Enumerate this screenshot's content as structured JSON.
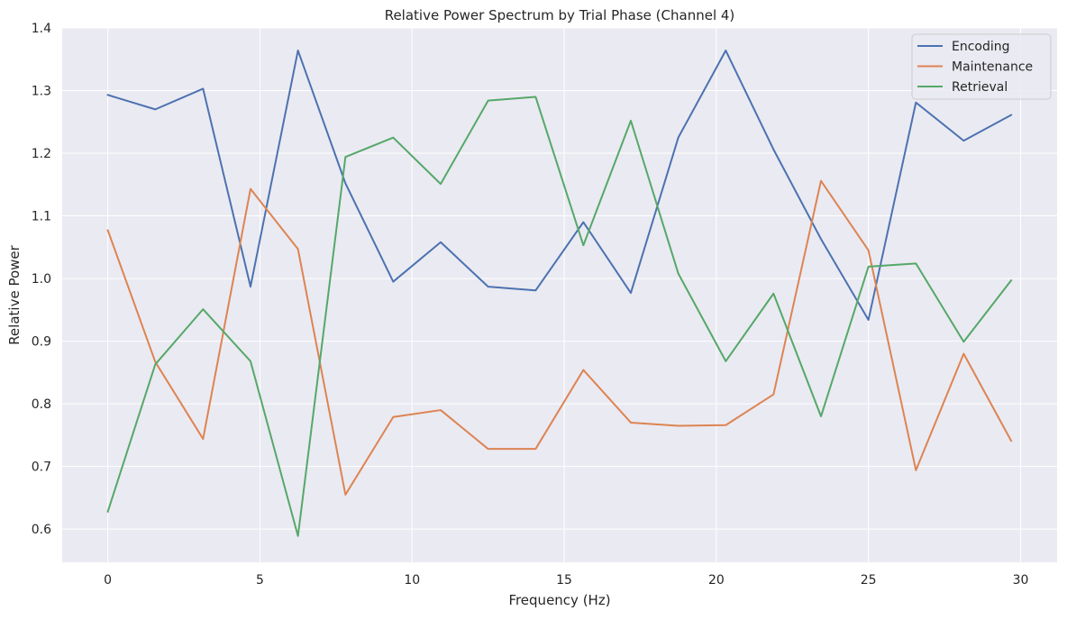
{
  "chart_data": {
    "type": "line",
    "title": "Relative Power Spectrum by Trial Phase (Channel 4)",
    "xlabel": "Frequency (Hz)",
    "ylabel": "Relative Power",
    "xlim": [
      -1.5,
      31.2
    ],
    "ylim": [
      0.547,
      1.4
    ],
    "xticks": [
      0,
      5,
      10,
      15,
      20,
      25,
      30
    ],
    "xtick_labels": [
      "0",
      "5",
      "10",
      "15",
      "20",
      "25",
      "30"
    ],
    "yticks": [
      0.6,
      0.7,
      0.8,
      0.9,
      1.0,
      1.1,
      1.2,
      1.3,
      1.4
    ],
    "ytick_labels": [
      "0.6",
      "0.7",
      "0.8",
      "0.9",
      "1.0",
      "1.1",
      "1.2",
      "1.3",
      "1.4"
    ],
    "grid": true,
    "legend_position": "top-right",
    "x": [
      0,
      1.56,
      3.13,
      4.69,
      6.25,
      7.81,
      9.38,
      10.94,
      12.5,
      14.06,
      15.63,
      17.19,
      18.75,
      20.31,
      21.88,
      23.44,
      25.0,
      26.56,
      28.13,
      29.69
    ],
    "series": [
      {
        "name": "Encoding",
        "color": "#4c72b0",
        "values": [
          1.293,
          1.27,
          1.303,
          0.987,
          1.364,
          1.152,
          0.995,
          1.058,
          0.987,
          0.981,
          1.09,
          0.977,
          1.225,
          1.364,
          1.206,
          1.063,
          0.934,
          1.281,
          1.22,
          1.261
        ]
      },
      {
        "name": "Maintenance",
        "color": "#dd8452",
        "values": [
          1.077,
          0.867,
          0.744,
          1.143,
          1.047,
          0.655,
          0.779,
          0.79,
          0.728,
          0.728,
          0.854,
          0.77,
          0.765,
          0.766,
          0.815,
          1.156,
          1.045,
          0.694,
          0.88,
          0.741
        ]
      },
      {
        "name": "Retrieval",
        "color": "#55a868",
        "values": [
          0.628,
          0.863,
          0.951,
          0.868,
          0.589,
          1.194,
          1.225,
          1.151,
          1.284,
          1.29,
          1.053,
          1.252,
          1.008,
          0.868,
          0.976,
          0.78,
          1.019,
          1.024,
          0.899,
          0.997
        ]
      }
    ]
  },
  "colors": {
    "plot_background": "#eaeaf2",
    "grid": "#ffffff",
    "text": "#262626"
  }
}
